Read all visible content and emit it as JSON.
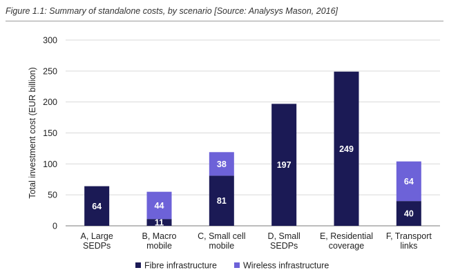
{
  "figure_caption": "Figure 1.1: Summary of standalone costs, by scenario [Source: Analysys Mason, 2016]",
  "chart_data": {
    "type": "bar",
    "stacked": true,
    "categories": [
      [
        "A, Large",
        "SEDPs"
      ],
      [
        "B, Macro",
        "mobile"
      ],
      [
        "C, Small cell",
        "mobile"
      ],
      [
        "D, Small",
        "SEDPs"
      ],
      [
        "E, Residential",
        "coverage"
      ],
      [
        "F, Transport",
        "links"
      ]
    ],
    "series": [
      {
        "name": "Fibre infrastructure",
        "color": "#1b1a55",
        "values": [
          64,
          11,
          81,
          197,
          249,
          40
        ]
      },
      {
        "name": "Wireless infrastructure",
        "color": "#6d62d8",
        "values": [
          0,
          44,
          38,
          0,
          0,
          64
        ]
      }
    ],
    "ylabel": "Total investment cost (EUR billion)",
    "ylim": [
      0,
      300
    ],
    "yticks": [
      0,
      50,
      100,
      150,
      200,
      250,
      300
    ],
    "grid": true,
    "legend_position": "bottom",
    "data_labels": true
  }
}
